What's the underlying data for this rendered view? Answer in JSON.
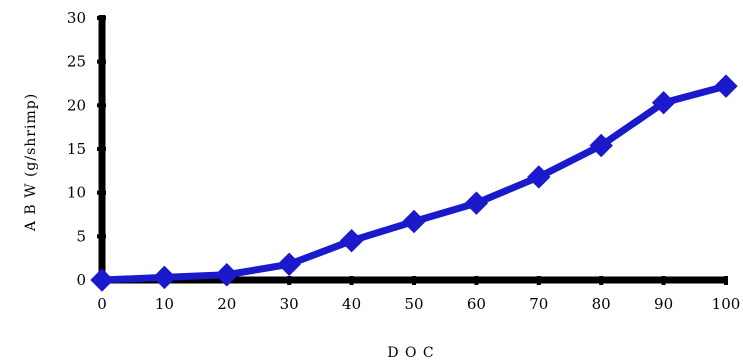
{
  "chart_data": {
    "type": "line",
    "xlabel": "D O C",
    "ylabel": "A B W  (g/shrimp)",
    "xlim": [
      0,
      100
    ],
    "ylim": [
      0,
      30
    ],
    "x_ticks": [
      0,
      10,
      20,
      30,
      40,
      50,
      60,
      70,
      80,
      90,
      100
    ],
    "y_ticks": [
      0,
      5,
      10,
      15,
      20,
      25,
      30
    ],
    "grid": false,
    "marker": "diamond",
    "colors": {
      "series": "#1a1acc",
      "axis": "#000000"
    },
    "series": [
      {
        "x": [
          0,
          10,
          20,
          30,
          40,
          50,
          60,
          70,
          80,
          90,
          100
        ],
        "values": [
          0,
          0.3,
          0.6,
          1.8,
          4.5,
          6.7,
          8.8,
          11.8,
          15.4,
          20.3,
          22.2
        ]
      }
    ]
  }
}
